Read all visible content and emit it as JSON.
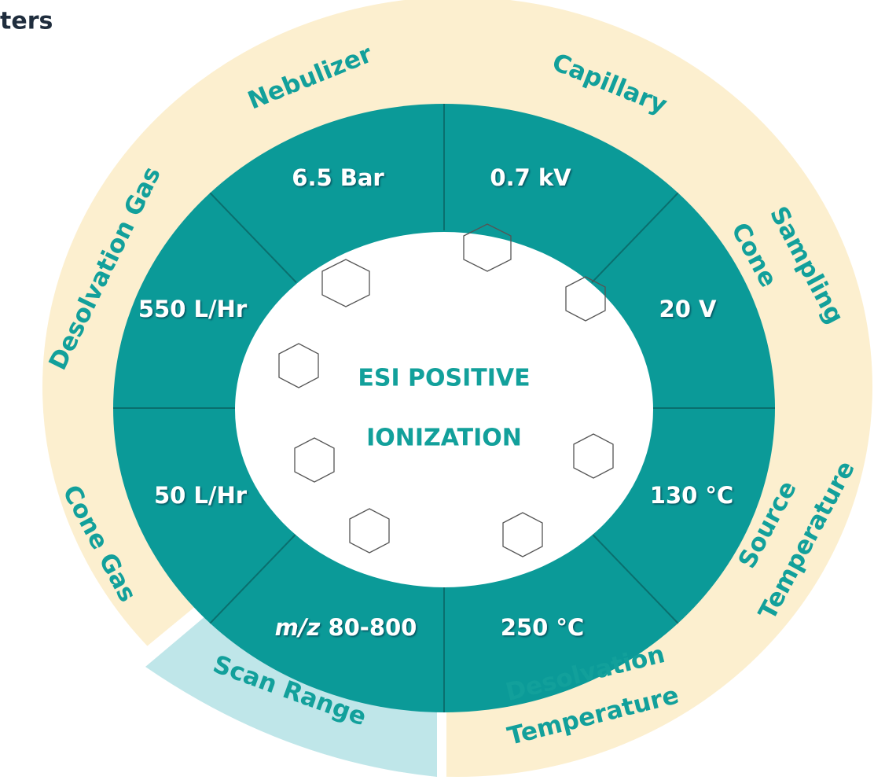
{
  "title": "ters",
  "center": [
    "ESI POSITIVE",
    "IONIZATION"
  ],
  "segments": [
    {
      "label": [
        "Nebulizer"
      ],
      "value": "6.5 Bar"
    },
    {
      "label": [
        "Capillary"
      ],
      "value": "0.7 kV"
    },
    {
      "label": [
        "Sampling",
        "Cone"
      ],
      "value": "20 V"
    },
    {
      "label": [
        "Source",
        "Temperature"
      ],
      "value": "130 °C"
    },
    {
      "label": [
        "Desolvation",
        "Temperature"
      ],
      "value": "250 °C"
    },
    {
      "label": [
        "Scan Range"
      ],
      "value_italic": "m/z",
      "value": "80-800"
    },
    {
      "label": [
        "Cone Gas"
      ],
      "value": "50 L/Hr"
    },
    {
      "label": [
        "Desolvation Gas"
      ],
      "value": "550 L/Hr"
    }
  ]
}
